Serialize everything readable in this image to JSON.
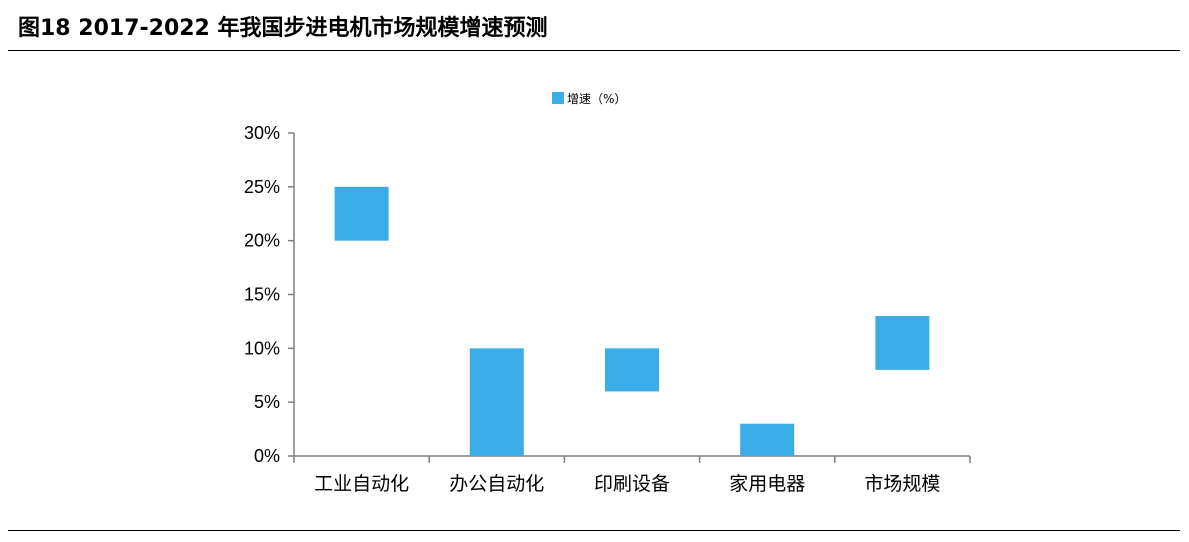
{
  "title": "图18 2017-2022 年我国步进电机市场规模增速预测",
  "chart_data": {
    "type": "bar",
    "subtype": "floating-range",
    "categories": [
      "工业自动化",
      "办公自动化",
      "印刷设备",
      "家用电器",
      "市场规模"
    ],
    "series": [
      {
        "name": "增速（%）",
        "color": "#3AACE6",
        "ranges": [
          [
            20,
            25
          ],
          [
            0,
            10
          ],
          [
            6,
            10
          ],
          [
            0,
            3
          ],
          [
            8,
            13
          ]
        ]
      }
    ],
    "y_ticks": [
      "0%",
      "5%",
      "10%",
      "15%",
      "20%",
      "25%",
      "30%"
    ],
    "ylim": [
      0,
      30
    ],
    "legend_position": "top-center",
    "grid": false
  }
}
